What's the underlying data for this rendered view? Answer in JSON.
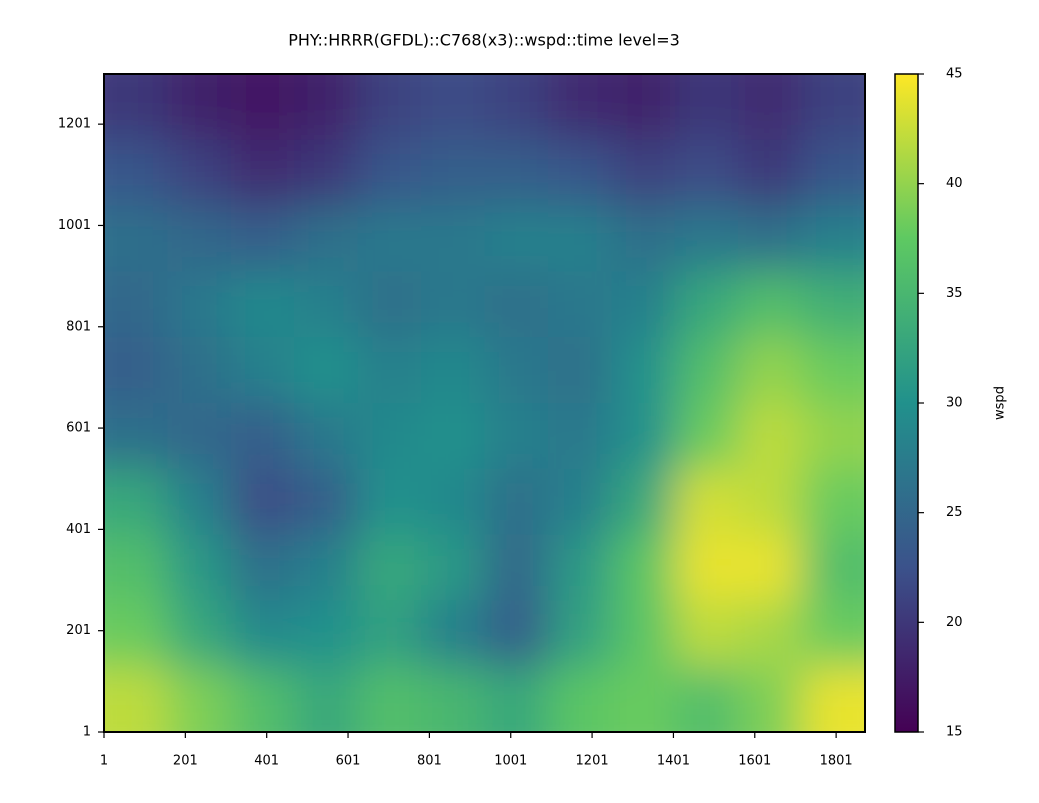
{
  "chart_data": {
    "type": "heatmap",
    "title": "PHY::HRRR(GFDL)::C768(x3)::wspd::time level=3",
    "colorbar_label": "wspd",
    "cmap": "viridis",
    "xlim": [
      1,
      1872
    ],
    "ylim": [
      1,
      1300
    ],
    "xticks": [
      1,
      201,
      401,
      601,
      801,
      1001,
      1201,
      1401,
      1601,
      1801
    ],
    "yticks": [
      1,
      201,
      401,
      601,
      801,
      1001,
      1201
    ],
    "clim": [
      15,
      45
    ],
    "cticks": [
      15,
      20,
      25,
      30,
      35,
      40,
      45
    ],
    "values": [
      [
        20,
        18,
        17,
        18,
        21,
        22,
        21,
        19,
        18,
        20,
        19,
        21
      ],
      [
        23,
        21,
        19,
        20,
        23,
        24,
        24,
        23,
        21,
        22,
        20,
        23
      ],
      [
        26,
        25,
        24,
        26,
        27,
        27,
        28,
        28,
        26,
        27,
        26,
        28
      ],
      [
        25,
        27,
        29,
        28,
        26,
        27,
        26,
        27,
        28,
        33,
        36,
        34
      ],
      [
        24,
        26,
        28,
        30,
        28,
        29,
        27,
        26,
        30,
        36,
        40,
        38
      ],
      [
        26,
        25,
        24,
        27,
        29,
        30,
        28,
        27,
        30,
        38,
        42,
        40
      ],
      [
        33,
        28,
        22,
        24,
        30,
        29,
        26,
        28,
        33,
        43,
        42,
        38
      ],
      [
        36,
        31,
        26,
        28,
        33,
        31,
        25,
        31,
        37,
        44,
        44,
        36
      ],
      [
        38,
        33,
        29,
        30,
        32,
        28,
        24,
        32,
        37,
        42,
        41,
        38
      ],
      [
        42,
        39,
        36,
        33,
        36,
        35,
        33,
        37,
        38,
        36,
        39,
        44
      ]
    ]
  }
}
